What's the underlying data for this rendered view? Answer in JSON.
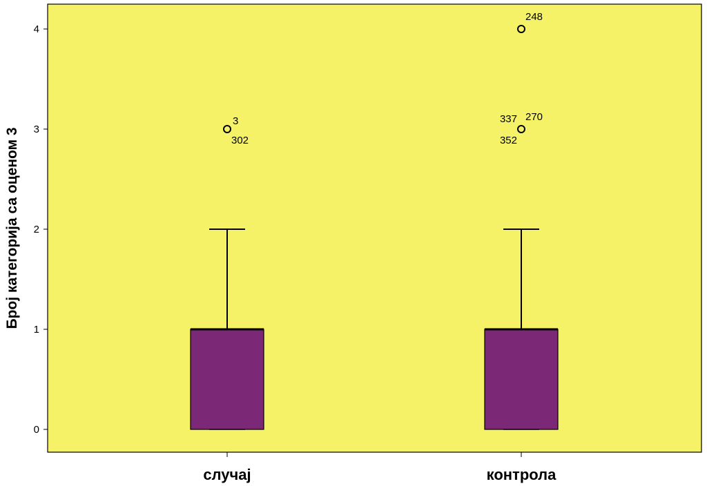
{
  "chart_data": {
    "type": "boxplot",
    "title": "",
    "xlabel": "",
    "ylabel": "Број категорија са оценом 3",
    "ylim": [
      -0.2,
      4.23
    ],
    "yticks": [
      "0",
      "1",
      "2",
      "3",
      "4"
    ],
    "grid": false,
    "legend": "none",
    "categories": [
      "случај",
      "контрола"
    ],
    "boxes": [
      {
        "category": "случај",
        "min": 0,
        "q1": 0,
        "median": 1,
        "q3": 1,
        "max": 2,
        "outliers": [
          {
            "value": 3,
            "labels": [
              "3",
              "302"
            ]
          }
        ]
      },
      {
        "category": "контрола",
        "min": 0,
        "q1": 0,
        "median": 1,
        "q3": 1,
        "max": 2,
        "outliers": [
          {
            "value": 4,
            "labels": [
              "248"
            ]
          },
          {
            "value": 3,
            "labels": [
              "337",
              "270",
              "352"
            ]
          }
        ]
      }
    ],
    "colors": {
      "plot_background": "#F5F267",
      "box_fill": "#7B2877",
      "line": "#000000"
    }
  }
}
